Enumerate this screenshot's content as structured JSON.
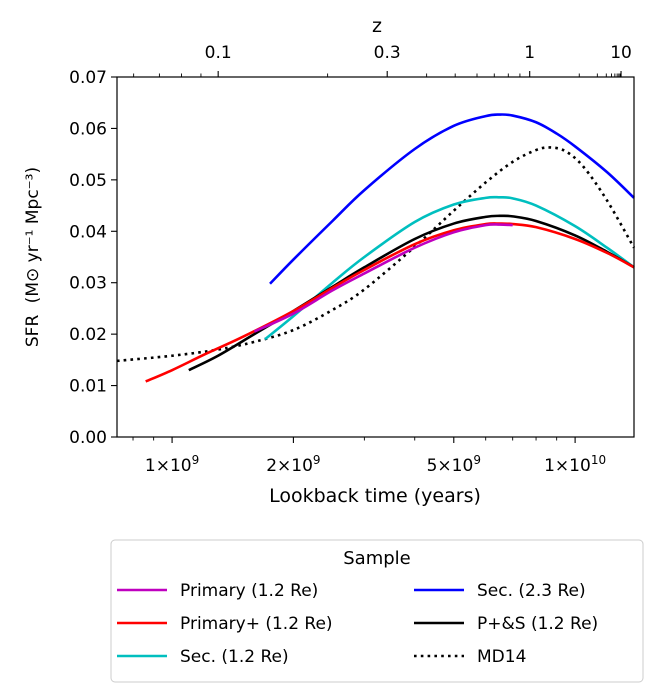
{
  "chart_data": {
    "type": "line",
    "xlabel": "Lookback time (years)",
    "ylabel": "SFR",
    "ylabel_unit": "(M⊙ yr⁻¹ Mpc⁻³)",
    "top_axis_label": "z",
    "x_scale": "log",
    "xlim": [
      730000000.0,
      14000000000.0
    ],
    "ylim": [
      0,
      0.07
    ],
    "y_ticks": [
      {
        "value": 0.0,
        "label": "0.00"
      },
      {
        "value": 0.01,
        "label": "0.01"
      },
      {
        "value": 0.02,
        "label": "0.02"
      },
      {
        "value": 0.03,
        "label": "0.03"
      },
      {
        "value": 0.04,
        "label": "0.04"
      },
      {
        "value": 0.05,
        "label": "0.05"
      },
      {
        "value": 0.06,
        "label": "0.06"
      },
      {
        "value": 0.07,
        "label": "0.07"
      }
    ],
    "x_ticks": [
      {
        "value": 1000000000.0,
        "mant": "1",
        "exp": "9"
      },
      {
        "value": 2000000000.0,
        "mant": "2",
        "exp": "9"
      },
      {
        "value": 5000000000.0,
        "mant": "5",
        "exp": "9"
      },
      {
        "value": 10000000000.0,
        "mant": "1",
        "exp": "10"
      }
    ],
    "top_ticks": [
      {
        "z": 0.1,
        "label": "0.1"
      },
      {
        "z": 0.3,
        "label": "0.3"
      },
      {
        "z": 1,
        "label": "1"
      },
      {
        "z": 10,
        "label": "10"
      }
    ],
    "series": [
      {
        "name": "Sec. (2.3Re)",
        "color": "#0000ff",
        "dash": "solid",
        "x": [
          1750000000.0,
          2000000000.0,
          2500000000.0,
          3000000000.0,
          4000000000.0,
          5000000000.0,
          6000000000.0,
          6500000000.0,
          7000000000.0,
          8000000000.0,
          9000000000.0,
          10000000000.0,
          12000000000.0,
          14000000000.0
        ],
        "y": [
          0.0298,
          0.0345,
          0.042,
          0.048,
          0.056,
          0.0605,
          0.0624,
          0.0627,
          0.0625,
          0.0612,
          0.059,
          0.0565,
          0.0515,
          0.0465
        ]
      },
      {
        "name": "MD14",
        "color": "#000000",
        "dash": "dotted",
        "x": [
          730000000.0,
          1000000000.0,
          1300000000.0,
          1600000000.0,
          2000000000.0,
          2500000000.0,
          3000000000.0,
          4000000000.0,
          5000000000.0,
          6000000000.0,
          7000000000.0,
          8000000000.0,
          8700000000.0,
          9500000000.0,
          10500000000.0,
          12000000000.0,
          14000000000.0
        ],
        "y": [
          0.0148,
          0.0158,
          0.017,
          0.0185,
          0.0208,
          0.0247,
          0.0287,
          0.037,
          0.044,
          0.0495,
          0.0535,
          0.0558,
          0.0563,
          0.0555,
          0.0525,
          0.046,
          0.0368
        ]
      },
      {
        "name": "Sec. (1.2Re)",
        "color": "#00bfbf",
        "dash": "solid",
        "x": [
          1700000000.0,
          2000000000.0,
          2500000000.0,
          3000000000.0,
          4000000000.0,
          5000000000.0,
          6000000000.0,
          6500000000.0,
          7000000000.0,
          8000000000.0,
          10000000000.0,
          12000000000.0,
          14000000000.0
        ],
        "y": [
          0.019,
          0.0235,
          0.03,
          0.035,
          0.0418,
          0.0452,
          0.0465,
          0.0466,
          0.0464,
          0.045,
          0.041,
          0.0368,
          0.033
        ]
      },
      {
        "name": "P+&S (1.2Re)",
        "color": "#000000",
        "dash": "solid",
        "x": [
          1100000000.0,
          1300000000.0,
          1600000000.0,
          2000000000.0,
          2500000000.0,
          3000000000.0,
          4000000000.0,
          5000000000.0,
          6000000000.0,
          6500000000.0,
          7000000000.0,
          8000000000.0,
          10000000000.0,
          12000000000.0,
          14000000000.0
        ],
        "y": [
          0.013,
          0.0158,
          0.02,
          0.0245,
          0.0292,
          0.033,
          0.0385,
          0.0415,
          0.0428,
          0.043,
          0.0429,
          0.042,
          0.0392,
          0.036,
          0.033
        ]
      },
      {
        "name": "Primary+ (1.2Re)",
        "color": "#ff0000",
        "dash": "solid",
        "x": [
          860000000.0,
          1000000000.0,
          1200000000.0,
          1500000000.0,
          2000000000.0,
          2500000000.0,
          3000000000.0,
          4000000000.0,
          5000000000.0,
          6000000000.0,
          6500000000.0,
          7000000000.0,
          8000000000.0,
          10000000000.0,
          12000000000.0,
          14000000000.0
        ],
        "y": [
          0.0108,
          0.013,
          0.016,
          0.0195,
          0.0245,
          0.029,
          0.0325,
          0.0375,
          0.0402,
          0.0414,
          0.0415,
          0.0414,
          0.0408,
          0.0385,
          0.0358,
          0.033
        ]
      },
      {
        "name": "Primary (1.2Re)",
        "color": "#bf00bf",
        "dash": "solid",
        "x": [
          1600000000.0,
          2000000000.0,
          2500000000.0,
          3000000000.0,
          4000000000.0,
          5000000000.0,
          6000000000.0,
          6500000000.0,
          7000000000.0
        ],
        "y": [
          0.0205,
          0.024,
          0.0285,
          0.0318,
          0.0368,
          0.0398,
          0.0412,
          0.0413,
          0.0412
        ]
      }
    ],
    "legend": {
      "title": "Sample",
      "position": "below",
      "items": [
        {
          "label": "Primary (1.2 Re)",
          "color": "#bf00bf",
          "dash": "solid"
        },
        {
          "label": "Primary+ (1.2 Re)",
          "color": "#ff0000",
          "dash": "solid"
        },
        {
          "label": "Sec. (1.2 Re)",
          "color": "#00bfbf",
          "dash": "solid"
        },
        {
          "label": "Sec. (2.3 Re)",
          "color": "#0000ff",
          "dash": "solid"
        },
        {
          "label": "P+&S (1.2 Re)",
          "color": "#000000",
          "dash": "solid"
        },
        {
          "label": "MD14",
          "color": "#000000",
          "dash": "dotted"
        }
      ]
    }
  }
}
